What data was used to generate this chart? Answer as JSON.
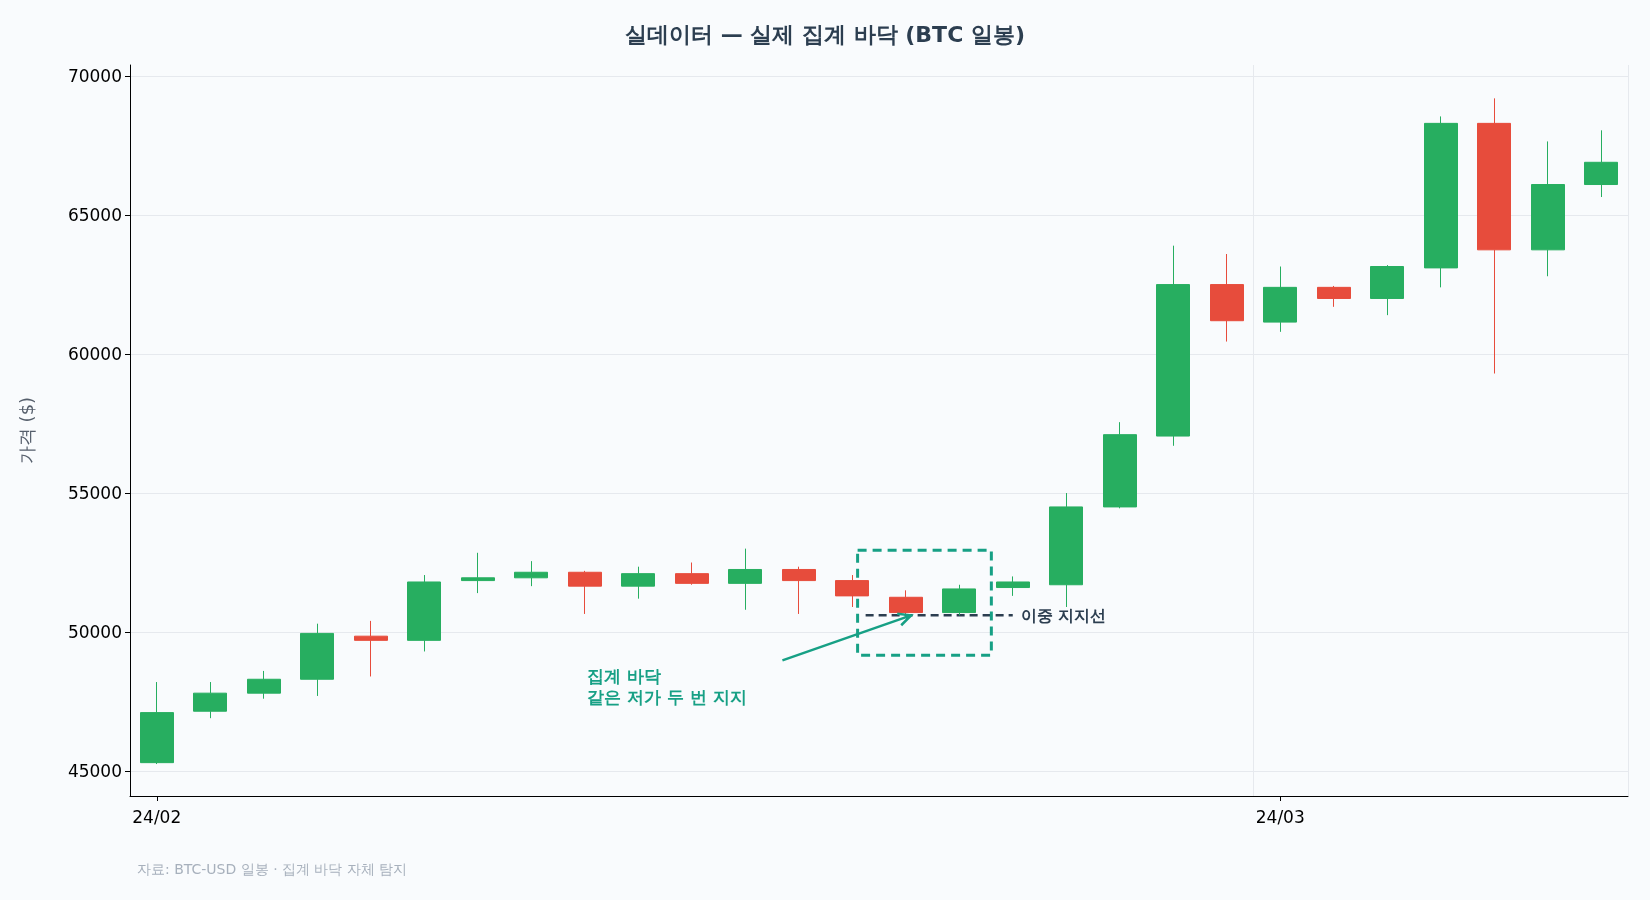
{
  "chart_data": {
    "type": "candlestick",
    "title": "실데이터 — 실제 집계 바닥 (BTC 일봉)",
    "ylabel": "가격 ($)",
    "categories": [
      "24/02",
      null,
      null,
      null,
      null,
      null,
      null,
      null,
      null,
      null,
      null,
      null,
      null,
      null,
      null,
      null,
      null,
      null,
      null,
      null,
      null,
      "24/03",
      null,
      null,
      null,
      null,
      null,
      null
    ],
    "ohlc": [
      [
        45300,
        48200,
        45250,
        47100
      ],
      [
        47150,
        48200,
        46900,
        47800
      ],
      [
        47800,
        48600,
        47600,
        48300
      ],
      [
        48300,
        50300,
        47700,
        49950
      ],
      [
        49850,
        50400,
        48400,
        49700
      ],
      [
        49700,
        52050,
        49300,
        51800
      ],
      [
        51850,
        52850,
        51400,
        51950
      ],
      [
        51950,
        52550,
        51650,
        52150
      ],
      [
        52150,
        52200,
        50650,
        51650
      ],
      [
        51650,
        52350,
        51200,
        52100
      ],
      [
        52100,
        52500,
        51700,
        51750
      ],
      [
        51750,
        53000,
        50800,
        52250
      ],
      [
        52250,
        52350,
        50650,
        51850
      ],
      [
        51850,
        52050,
        50900,
        51300
      ],
      [
        51250,
        51500,
        50600,
        50700
      ],
      [
        50700,
        51700,
        50600,
        51550
      ],
      [
        51600,
        52000,
        51300,
        51800
      ],
      [
        51700,
        55000,
        50900,
        54500
      ],
      [
        54500,
        57550,
        54450,
        57100
      ],
      [
        57050,
        63900,
        56700,
        62500
      ],
      [
        62500,
        63600,
        60450,
        61200
      ],
      [
        61150,
        63150,
        60800,
        62400
      ],
      [
        62400,
        62450,
        61700,
        62000
      ],
      [
        62000,
        63200,
        61400,
        63150
      ],
      [
        63100,
        68550,
        62400,
        68300
      ],
      [
        68300,
        69200,
        59300,
        63750
      ],
      [
        63750,
        67650,
        62800,
        66100
      ],
      [
        66100,
        68050,
        65650,
        66900
      ]
    ],
    "colors": [
      "#27ae60",
      "#27ae60",
      "#27ae60",
      "#27ae60",
      "#e74c3c",
      "#27ae60",
      "#27ae60",
      "#27ae60",
      "#e74c3c",
      "#27ae60",
      "#e74c3c",
      "#27ae60",
      "#e74c3c",
      "#e74c3c",
      "#e74c3c",
      "#27ae60",
      "#27ae60",
      "#27ae60",
      "#27ae60",
      "#27ae60",
      "#e74c3c",
      "#27ae60",
      "#e74c3c",
      "#27ae60",
      "#27ae60",
      "#e74c3c",
      "#27ae60",
      "#27ae60"
    ],
    "ylim": [
      44100,
      70400
    ],
    "yticks": [
      45000,
      50000,
      55000,
      60000,
      65000,
      70000
    ],
    "grid": true,
    "ref_lines": [
      {
        "axis": "y",
        "value": 50600,
        "label": "이중 지지선",
        "color": "#2c3e50",
        "line_style": "dashed"
      }
    ],
    "annotations": [
      "집계 바닥\n같은 저가 두 번 지지",
      "자료: BTC-USD 일봉 · 집계 바닥 자체 탐지"
    ]
  }
}
